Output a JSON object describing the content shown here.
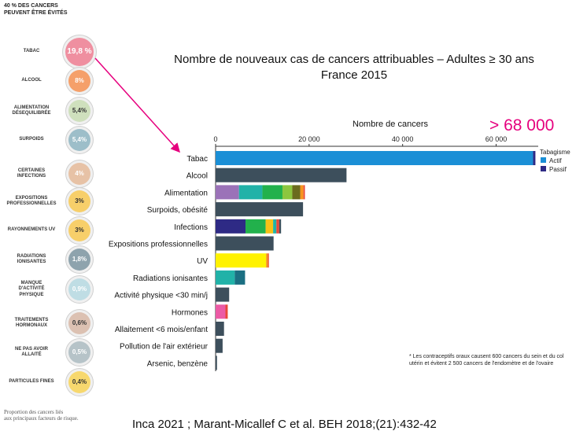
{
  "left_panel": {
    "header_line1": "40 % DES CANCERS",
    "header_line2": "PEUVENT ÊTRE ÉVITÉS",
    "footnote_line1": "Proportion des cancers liés",
    "footnote_line2": "aux principaux facteurs de risque.",
    "factors": [
      {
        "label": [
          "TABAC"
        ],
        "value": "19,8 %",
        "color": "#ef8fa0",
        "textColor": "#ffffff"
      },
      {
        "label": [
          "ALCOOL"
        ],
        "value": "8%",
        "color": "#f5a06a",
        "textColor": "#ffffff"
      },
      {
        "label": [
          "ALIMENTATION",
          "DÉSEQUILIBRÉE"
        ],
        "value": "5,4%",
        "color": "#cfe0bd",
        "textColor": "#333333"
      },
      {
        "label": [
          "SURPOIDS"
        ],
        "value": "5,4%",
        "color": "#9dbec9",
        "textColor": "#ffffff"
      },
      {
        "label": [
          "CERTAINES",
          "INFECTIONS"
        ],
        "value": "4%",
        "color": "#e7c2a6",
        "textColor": "#ffffff"
      },
      {
        "label": [
          "EXPOSITIONS",
          "PROFESSIONNELLES"
        ],
        "value": "3%",
        "color": "#f7cf6a",
        "textColor": "#333333"
      },
      {
        "label": [
          "RAYONNEMENTS UV"
        ],
        "value": "3%",
        "color": "#f7cf6a",
        "textColor": "#333333"
      },
      {
        "label": [
          "RADIATIONS",
          "IONISANTES"
        ],
        "value": "1,8%",
        "color": "#8ea3ad",
        "textColor": "#ffffff"
      },
      {
        "label": [
          "MANQUE",
          "D'ACTIVITÉ",
          "PHYSIQUE"
        ],
        "value": "0,9%",
        "color": "#bfdde4",
        "textColor": "#ffffff"
      },
      {
        "label": [
          "TRAITEMENTS",
          "HORMONAUX"
        ],
        "value": "0,6%",
        "color": "#dcc1b2",
        "textColor": "#333333"
      },
      {
        "label": [
          "NE PAS AVOIR",
          "ALLAITÉ"
        ],
        "value": "0,5%",
        "color": "#b6c3c8",
        "textColor": "#ffffff"
      },
      {
        "label": [
          "PARTICULES FINES"
        ],
        "value": "0,4%",
        "color": "#f7d86e",
        "textColor": "#333333"
      }
    ]
  },
  "title_line1": "Nombre de nouveaux cas de cancers attribuables – Adultes ≥ 30 ans",
  "title_line2": "France 2015",
  "big_number": "> 68 000",
  "source": "Inca 2021 ; Marant-Micallef C et al. BEH 2018;(21):432-42",
  "chart_footnote": "* Les contraceptifs oraux causent 600 cancers du sein et du col utérin et évitent 2 500 cancers de l'endomètre et de l'ovaire",
  "chart_data": {
    "type": "bar",
    "orientation": "horizontal",
    "stacked": true,
    "xlabel": "Nombre de cancers",
    "xlim": [
      0,
      69000
    ],
    "xticks": [
      0,
      20000,
      40000,
      60000
    ],
    "xtick_labels": [
      "0",
      "20 000",
      "40 000",
      "60 000"
    ],
    "legend_title": "Tabagisme",
    "legend": [
      {
        "name": "Actif",
        "color": "#1b8fd6"
      },
      {
        "name": "Passif",
        "color": "#2e2a85"
      }
    ],
    "legend_position": "top-right",
    "categories": [
      "Tabac",
      "Alcool",
      "Alimentation",
      "Surpoids, obésité",
      "Infections",
      "Expositions professionnelles",
      "UV",
      "Radiations ionisantes",
      "Activité physique <30 min/j",
      "Hormones",
      "Allaitement <6 mois/enfant",
      "Pollution de l'air extérieur",
      "Arsenic, benzène"
    ],
    "bars": [
      [
        {
          "value": 67900,
          "color": "#1b8fd6"
        },
        {
          "value": 500,
          "color": "#2e2a85"
        }
      ],
      [
        {
          "value": 28000,
          "color": "#3d4f5c"
        }
      ],
      [
        {
          "value": 5000,
          "color": "#9b72b8"
        },
        {
          "value": 5000,
          "color": "#21b2a8"
        },
        {
          "value": 4300,
          "color": "#22b14c"
        },
        {
          "value": 2100,
          "color": "#8dc63f"
        },
        {
          "value": 1700,
          "color": "#6b6b1e"
        },
        {
          "value": 700,
          "color": "#f7941d"
        },
        {
          "value": 300,
          "color": "#e9473a"
        }
      ],
      [
        {
          "value": 18700,
          "color": "#3d4f5c"
        }
      ],
      [
        {
          "value": 6400,
          "color": "#2e2a85"
        },
        {
          "value": 4300,
          "color": "#22b14c"
        },
        {
          "value": 1600,
          "color": "#f7c117"
        },
        {
          "value": 700,
          "color": "#21b2a8"
        },
        {
          "value": 600,
          "color": "#e9473a"
        },
        {
          "value": 400,
          "color": "#3d4f5c"
        }
      ],
      [
        {
          "value": 12400,
          "color": "#3d4f5c"
        }
      ],
      [
        {
          "value": 10800,
          "color": "#fff200"
        },
        {
          "value": 400,
          "color": "#f7941d"
        },
        {
          "value": 200,
          "color": "#e9473a"
        }
      ],
      [
        {
          "value": 4100,
          "color": "#21b2a8"
        },
        {
          "value": 2200,
          "color": "#1b6f82"
        }
      ],
      [
        {
          "value": 2900,
          "color": "#3d4f5c"
        }
      ],
      [
        {
          "value": 2100,
          "color": "#ec5aa5"
        },
        {
          "value": 500,
          "color": "#e9473a"
        }
      ],
      [
        {
          "value": 1800,
          "color": "#3d4f5c"
        }
      ],
      [
        {
          "value": 1500,
          "color": "#3d4f5c"
        }
      ],
      [
        {
          "value": 300,
          "color": "#3d4f5c"
        }
      ]
    ]
  }
}
